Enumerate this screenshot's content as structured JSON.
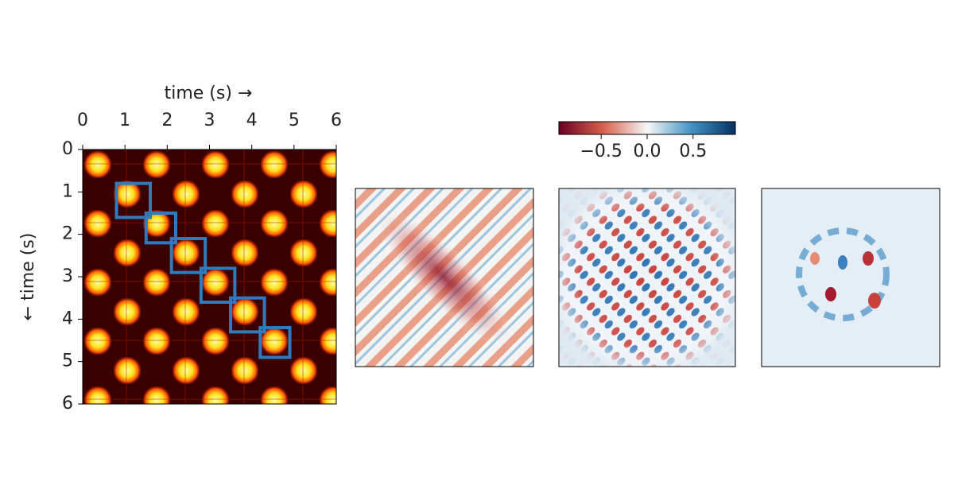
{
  "chart_data": [
    {
      "type": "heatmap",
      "xlabel": "time (s) →",
      "ylabel": "← time (s)",
      "xlim": [
        0,
        6
      ],
      "ylim": [
        6,
        0
      ],
      "xticks": [
        0,
        1,
        2,
        3,
        4,
        5,
        6
      ],
      "yticks": [
        0,
        1,
        2,
        3,
        4,
        5,
        6
      ],
      "box_color": "#2f7bbf",
      "boxes": [
        {
          "start": 0.8,
          "end": 1.6
        },
        {
          "start": 1.5,
          "end": 2.2
        },
        {
          "start": 2.1,
          "end": 2.9
        },
        {
          "start": 2.8,
          "end": 3.6
        },
        {
          "start": 3.5,
          "end": 4.3
        },
        {
          "start": 4.2,
          "end": 4.9
        }
      ]
    },
    {
      "type": "colorbar",
      "xlim": [
        -0.96,
        0.96
      ],
      "xticks": [
        {
          "value": -0.5,
          "label": "−0.5"
        },
        {
          "value": 0,
          "label": "0.0"
        },
        {
          "value": 0.5,
          "label": "0.5"
        }
      ]
    }
  ]
}
